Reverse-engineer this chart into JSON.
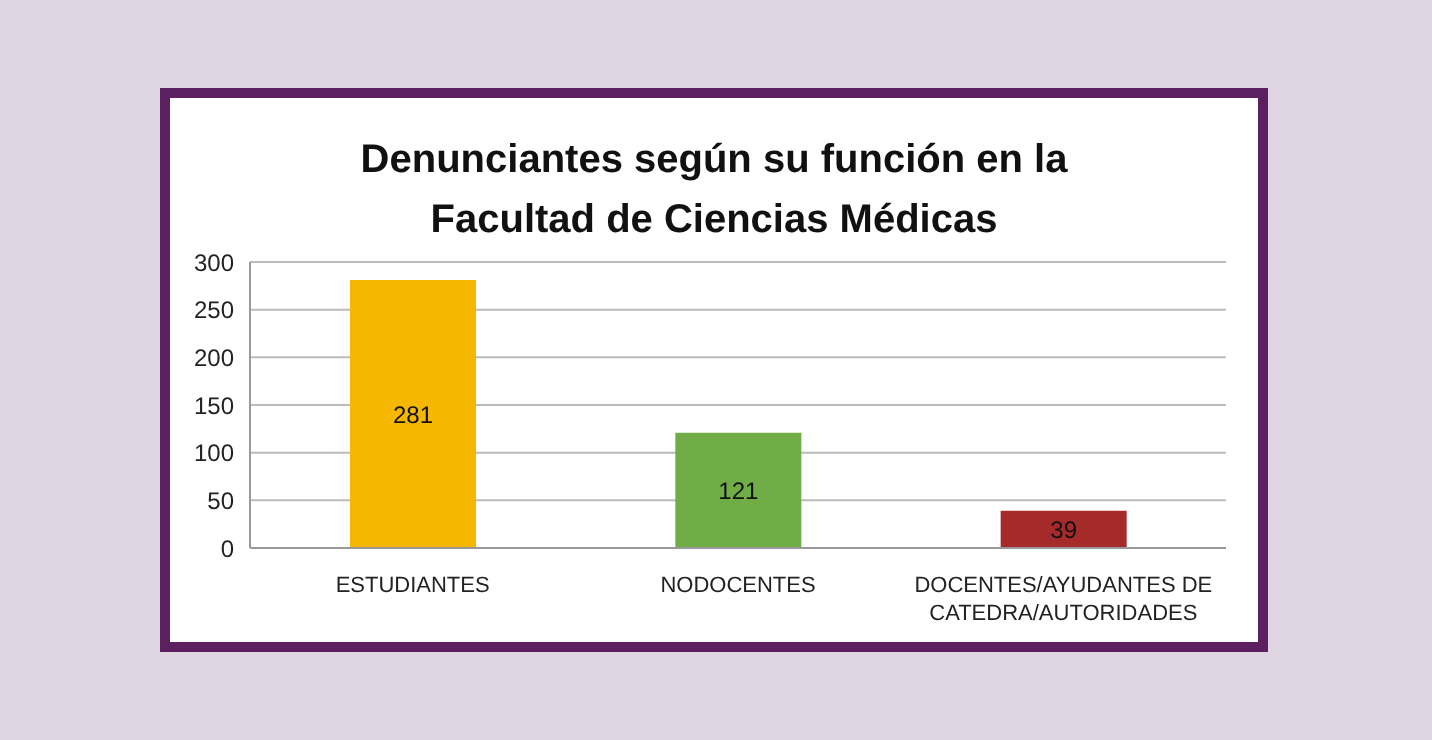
{
  "chart_data": {
    "type": "bar",
    "title": "Denunciantes según su función en la Facultad de Ciencias Médicas",
    "categories": [
      "ESTUDIANTES",
      "NODOCENTES",
      "DOCENTES/AYUDANTES DE CATEDRA/AUTORIDADES"
    ],
    "values": [
      281,
      121,
      39
    ],
    "colors": [
      "#f5b700",
      "#70ad47",
      "#a52a2a"
    ],
    "ylim": [
      0,
      300
    ],
    "yticks": [
      0,
      50,
      100,
      150,
      200,
      250,
      300
    ],
    "grid": "y",
    "data_labels": true,
    "legend": false
  }
}
